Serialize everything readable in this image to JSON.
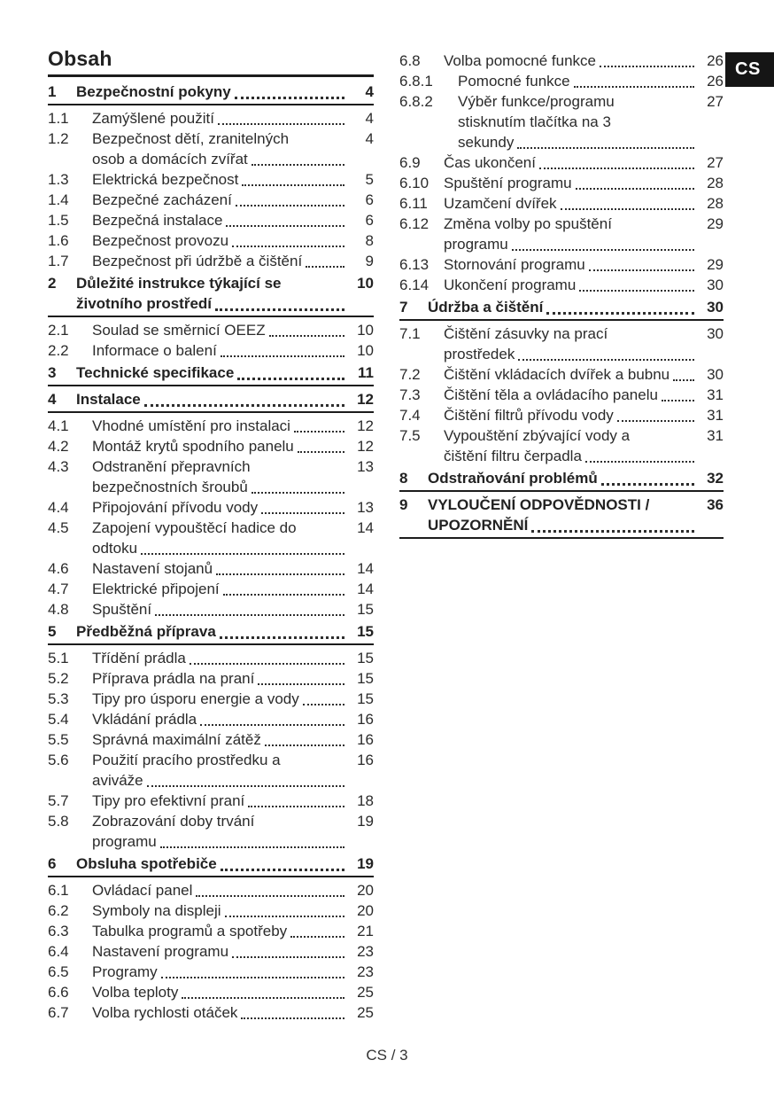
{
  "page": {
    "title": "Obsah",
    "language_tab": "CS",
    "footer": "CS / 3"
  },
  "colors": {
    "text": "#2b2b2b",
    "rule": "#1c1c1c",
    "tab_background": "#151515",
    "tab_text": "#ffffff",
    "dot_leader": "#2e2e2e"
  },
  "toc": {
    "columns": [
      {
        "entries": [
          {
            "num": "1",
            "level": "section",
            "lines": [
              "Bezpečnostní pokyny"
            ],
            "page": "4"
          },
          {
            "num": "1.1",
            "level": "sub",
            "lines": [
              "Zamýšlené použití"
            ],
            "page": "4"
          },
          {
            "num": "1.2",
            "level": "sub",
            "lines": [
              "Bezpečnost dětí, zranitelných",
              "osob a domácích zvířat"
            ],
            "page": "4"
          },
          {
            "num": "1.3",
            "level": "sub",
            "lines": [
              "Elektrická bezpečnost"
            ],
            "page": "5"
          },
          {
            "num": "1.4",
            "level": "sub",
            "lines": [
              "Bezpečné zacházení"
            ],
            "page": "6"
          },
          {
            "num": "1.5",
            "level": "sub",
            "lines": [
              "Bezpečná instalace"
            ],
            "page": "6"
          },
          {
            "num": "1.6",
            "level": "sub",
            "lines": [
              "Bezpečnost provozu"
            ],
            "page": "8"
          },
          {
            "num": "1.7",
            "level": "sub",
            "lines": [
              "Bezpečnost při údržbě a čištění"
            ],
            "page": "9"
          },
          {
            "num": "2",
            "level": "section",
            "lines": [
              "Důležité instrukce týkající se",
              "životního prostředí"
            ],
            "page": "10"
          },
          {
            "num": "2.1",
            "level": "sub",
            "lines": [
              "Soulad se směrnicí OEEZ"
            ],
            "page": "10"
          },
          {
            "num": "2.2",
            "level": "sub",
            "lines": [
              "Informace o balení"
            ],
            "page": "10"
          },
          {
            "num": "3",
            "level": "section",
            "lines": [
              "Technické specifikace"
            ],
            "page": "11"
          },
          {
            "num": "4",
            "level": "section",
            "lines": [
              "Instalace"
            ],
            "page": "12"
          },
          {
            "num": "4.1",
            "level": "sub",
            "lines": [
              "Vhodné umístění pro instalaci"
            ],
            "page": "12"
          },
          {
            "num": "4.2",
            "level": "sub",
            "lines": [
              "Montáž krytů spodního panelu"
            ],
            "page": "12"
          },
          {
            "num": "4.3",
            "level": "sub",
            "lines": [
              "Odstranění přepravních",
              "bezpečnostních šroubů"
            ],
            "page": "13"
          },
          {
            "num": "4.4",
            "level": "sub",
            "lines": [
              "Připojování přívodu vody"
            ],
            "page": "13"
          },
          {
            "num": "4.5",
            "level": "sub",
            "lines": [
              "Zapojení vypouštěcí hadice do",
              "odtoku"
            ],
            "page": "14"
          },
          {
            "num": "4.6",
            "level": "sub",
            "lines": [
              "Nastavení stojanů"
            ],
            "page": "14"
          },
          {
            "num": "4.7",
            "level": "sub",
            "lines": [
              "Elektrické připojení"
            ],
            "page": "14"
          },
          {
            "num": "4.8",
            "level": "sub",
            "lines": [
              "Spuštění"
            ],
            "page": "15"
          },
          {
            "num": "5",
            "level": "section",
            "lines": [
              "Předběžná příprava"
            ],
            "page": "15"
          },
          {
            "num": "5.1",
            "level": "sub",
            "lines": [
              "Třídění prádla"
            ],
            "page": "15"
          },
          {
            "num": "5.2",
            "level": "sub",
            "lines": [
              "Příprava prádla na praní"
            ],
            "page": "15"
          },
          {
            "num": "5.3",
            "level": "sub",
            "lines": [
              "Tipy pro úsporu energie a vody"
            ],
            "page": "15"
          },
          {
            "num": "5.4",
            "level": "sub",
            "lines": [
              "Vkládání prádla"
            ],
            "page": "16"
          },
          {
            "num": "5.5",
            "level": "sub",
            "lines": [
              "Správná maximální zátěž"
            ],
            "page": "16"
          },
          {
            "num": "5.6",
            "level": "sub",
            "lines": [
              "Použití pracího prostředku a",
              "aviváže"
            ],
            "page": "16"
          },
          {
            "num": "5.7",
            "level": "sub",
            "lines": [
              "Tipy pro efektivní praní"
            ],
            "page": "18"
          },
          {
            "num": "5.8",
            "level": "sub",
            "lines": [
              "Zobrazování doby trvání",
              "programu"
            ],
            "page": "19"
          },
          {
            "num": "6",
            "level": "section",
            "lines": [
              "Obsluha spotřebiče"
            ],
            "page": "19"
          },
          {
            "num": "6.1",
            "level": "sub",
            "lines": [
              "Ovládací panel"
            ],
            "page": "20"
          },
          {
            "num": "6.2",
            "level": "sub",
            "lines": [
              "Symboly na displeji"
            ],
            "page": "20"
          },
          {
            "num": "6.3",
            "level": "sub",
            "lines": [
              "Tabulka programů a spotřeby"
            ],
            "page": "21"
          },
          {
            "num": "6.4",
            "level": "sub",
            "lines": [
              "Nastavení programu"
            ],
            "page": "23"
          },
          {
            "num": "6.5",
            "level": "sub",
            "lines": [
              "Programy"
            ],
            "page": "23"
          },
          {
            "num": "6.6",
            "level": "sub",
            "lines": [
              "Volba teploty"
            ],
            "page": "25"
          },
          {
            "num": "6.7",
            "level": "sub",
            "lines": [
              "Volba rychlosti otáček"
            ],
            "page": "25"
          }
        ]
      },
      {
        "entries": [
          {
            "num": "6.8",
            "level": "sub",
            "lines": [
              "Volba pomocné funkce"
            ],
            "page": "26"
          },
          {
            "num": "6.8.1",
            "level": "subsub",
            "lines": [
              "Pomocné funkce"
            ],
            "page": "26"
          },
          {
            "num": "6.8.2",
            "level": "subsub",
            "lines": [
              "Výběr funkce/programu",
              "stisknutím tlačítka na 3",
              "sekundy"
            ],
            "page": "27"
          },
          {
            "num": "6.9",
            "level": "sub",
            "lines": [
              "Čas ukončení"
            ],
            "page": "27"
          },
          {
            "num": "6.10",
            "level": "sub",
            "lines": [
              "Spuštění programu"
            ],
            "page": "28"
          },
          {
            "num": "6.11",
            "level": "sub",
            "lines": [
              "Uzamčení dvířek"
            ],
            "page": "28"
          },
          {
            "num": "6.12",
            "level": "sub",
            "lines": [
              "Změna volby po spuštění",
              "programu"
            ],
            "page": "29"
          },
          {
            "num": "6.13",
            "level": "sub",
            "lines": [
              "Stornování programu"
            ],
            "page": "29"
          },
          {
            "num": "6.14",
            "level": "sub",
            "lines": [
              "Ukončení programu"
            ],
            "page": "30"
          },
          {
            "num": "7",
            "level": "section",
            "lines": [
              "Údržba a čištění"
            ],
            "page": "30"
          },
          {
            "num": "7.1",
            "level": "sub",
            "lines": [
              "Čištění zásuvky na prací",
              "prostředek"
            ],
            "page": "30"
          },
          {
            "num": "7.2",
            "level": "sub",
            "lines": [
              "Čištění vkládacích dvířek a bubnu"
            ],
            "page": "30"
          },
          {
            "num": "7.3",
            "level": "sub",
            "lines": [
              "Čištění těla a ovládacího panelu"
            ],
            "page": "31"
          },
          {
            "num": "7.4",
            "level": "sub",
            "lines": [
              "Čištění filtrů přívodu vody"
            ],
            "page": "31"
          },
          {
            "num": "7.5",
            "level": "sub",
            "lines": [
              "Vypouštění zbývající vody a",
              "čištění filtru čerpadla"
            ],
            "page": "31"
          },
          {
            "num": "8",
            "level": "section",
            "lines": [
              "Odstraňování problémů"
            ],
            "page": "32"
          },
          {
            "num": "9",
            "level": "section",
            "lines": [
              "VYLOUČENÍ ODPOVĚDNOSTI /",
              "UPOZORNĚNÍ"
            ],
            "page": "36"
          }
        ]
      }
    ]
  }
}
